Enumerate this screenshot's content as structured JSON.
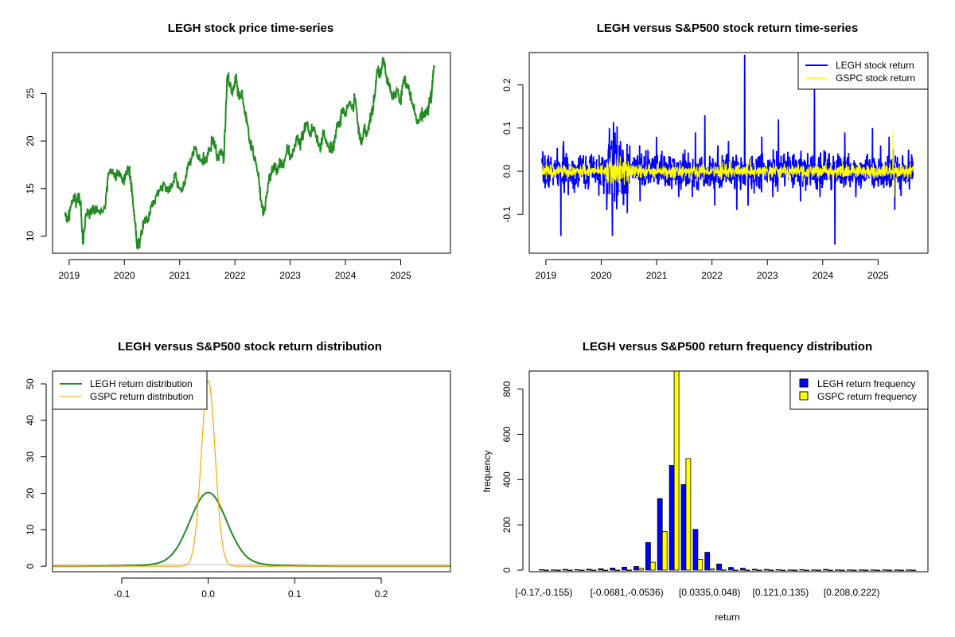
{
  "chart_data": [
    {
      "type": "line",
      "title": "LEGH stock price time-series",
      "x_ticks": [
        "2019",
        "2020",
        "2021",
        "2022",
        "2023",
        "2024",
        "2025"
      ],
      "y_ticks": [
        "10",
        "15",
        "20",
        "25"
      ],
      "xlim": [
        2018.7,
        2025.9
      ],
      "ylim": [
        8.2,
        29.3
      ],
      "series": [
        {
          "color": "#228B22",
          "points": [
            [
              2018.93,
              12.1
            ],
            [
              2018.97,
              11.4
            ],
            [
              2019.02,
              13.0
            ],
            [
              2019.08,
              14.0
            ],
            [
              2019.13,
              13.6
            ],
            [
              2019.17,
              14.3
            ],
            [
              2019.21,
              13.4
            ],
            [
              2019.25,
              9.1
            ],
            [
              2019.3,
              12.2
            ],
            [
              2019.36,
              12.6
            ],
            [
              2019.45,
              12.8
            ],
            [
              2019.55,
              12.6
            ],
            [
              2019.65,
              12.9
            ],
            [
              2019.7,
              16.0
            ],
            [
              2019.76,
              17.1
            ],
            [
              2019.82,
              16.2
            ],
            [
              2019.9,
              16.6
            ],
            [
              2019.95,
              16.0
            ],
            [
              2020.02,
              16.3
            ],
            [
              2020.08,
              17.0
            ],
            [
              2020.12,
              15.8
            ],
            [
              2020.16,
              13.2
            ],
            [
              2020.2,
              11.0
            ],
            [
              2020.23,
              8.7
            ],
            [
              2020.27,
              9.2
            ],
            [
              2020.32,
              10.5
            ],
            [
              2020.37,
              12.0
            ],
            [
              2020.42,
              11.5
            ],
            [
              2020.48,
              13.2
            ],
            [
              2020.55,
              13.8
            ],
            [
              2020.62,
              14.5
            ],
            [
              2020.7,
              15.5
            ],
            [
              2020.78,
              14.8
            ],
            [
              2020.85,
              15.3
            ],
            [
              2020.92,
              16.5
            ],
            [
              2021.0,
              15.0
            ],
            [
              2021.08,
              15.4
            ],
            [
              2021.15,
              17.5
            ],
            [
              2021.22,
              18.2
            ],
            [
              2021.28,
              19.3
            ],
            [
              2021.35,
              18.0
            ],
            [
              2021.42,
              17.8
            ],
            [
              2021.48,
              18.4
            ],
            [
              2021.55,
              19.0
            ],
            [
              2021.62,
              19.8
            ],
            [
              2021.68,
              18.3
            ],
            [
              2021.75,
              19.2
            ],
            [
              2021.8,
              18.0
            ],
            [
              2021.86,
              26.8
            ],
            [
              2021.91,
              26.0
            ],
            [
              2021.96,
              25.2
            ],
            [
              2022.02,
              26.9
            ],
            [
              2022.07,
              24.5
            ],
            [
              2022.12,
              25.0
            ],
            [
              2022.17,
              23.5
            ],
            [
              2022.22,
              22.0
            ],
            [
              2022.27,
              20.0
            ],
            [
              2022.32,
              19.0
            ],
            [
              2022.38,
              17.5
            ],
            [
              2022.44,
              15.5
            ],
            [
              2022.49,
              13.0
            ],
            [
              2022.53,
              12.6
            ],
            [
              2022.58,
              14.5
            ],
            [
              2022.63,
              16.5
            ],
            [
              2022.7,
              17.5
            ],
            [
              2022.76,
              16.8
            ],
            [
              2022.82,
              17.8
            ],
            [
              2022.88,
              17.2
            ],
            [
              2022.95,
              19.5
            ],
            [
              2023.0,
              18.2
            ],
            [
              2023.07,
              19.0
            ],
            [
              2023.12,
              20.5
            ],
            [
              2023.18,
              19.5
            ],
            [
              2023.24,
              21.0
            ],
            [
              2023.3,
              22.0
            ],
            [
              2023.35,
              20.5
            ],
            [
              2023.4,
              21.5
            ],
            [
              2023.45,
              21.0
            ],
            [
              2023.5,
              20.0
            ],
            [
              2023.55,
              19.2
            ],
            [
              2023.6,
              21.0
            ],
            [
              2023.65,
              20.0
            ],
            [
              2023.7,
              19.3
            ],
            [
              2023.75,
              18.7
            ],
            [
              2023.8,
              20.0
            ],
            [
              2023.85,
              21.5
            ],
            [
              2023.9,
              22.0
            ],
            [
              2023.95,
              23.5
            ],
            [
              2024.0,
              22.8
            ],
            [
              2024.07,
              24.0
            ],
            [
              2024.12,
              23.5
            ],
            [
              2024.18,
              24.5
            ],
            [
              2024.22,
              22.0
            ],
            [
              2024.26,
              20.5
            ],
            [
              2024.3,
              19.8
            ],
            [
              2024.34,
              21.5
            ],
            [
              2024.38,
              20.5
            ],
            [
              2024.43,
              22.0
            ],
            [
              2024.48,
              23.0
            ],
            [
              2024.53,
              25.0
            ],
            [
              2024.58,
              27.5
            ],
            [
              2024.63,
              26.8
            ],
            [
              2024.68,
              28.7
            ],
            [
              2024.73,
              27.0
            ],
            [
              2024.78,
              26.0
            ],
            [
              2024.83,
              25.0
            ],
            [
              2024.88,
              24.5
            ],
            [
              2024.93,
              25.5
            ],
            [
              2025.0,
              24.0
            ],
            [
              2025.05,
              26.5
            ],
            [
              2025.1,
              26.0
            ],
            [
              2025.15,
              25.5
            ],
            [
              2025.2,
              24.0
            ],
            [
              2025.25,
              23.0
            ],
            [
              2025.3,
              22.0
            ],
            [
              2025.35,
              22.5
            ],
            [
              2025.4,
              23.0
            ],
            [
              2025.45,
              22.8
            ],
            [
              2025.5,
              23.5
            ],
            [
              2025.55,
              24.5
            ],
            [
              2025.58,
              26.5
            ],
            [
              2025.61,
              27.9
            ]
          ]
        }
      ]
    },
    {
      "type": "line",
      "title": "LEGH versus S&P500 stock return time-series",
      "x_ticks": [
        "2019",
        "2020",
        "2021",
        "2022",
        "2023",
        "2024",
        "2025"
      ],
      "y_ticks": [
        "-0.1",
        "0.0",
        "0.1",
        "0.2"
      ],
      "xlim": [
        2018.7,
        2025.9
      ],
      "ylim": [
        -0.19,
        0.275
      ],
      "legend": {
        "position": "top-right"
      },
      "series": [
        {
          "name": "LEGH stock return",
          "color": "#0000FF",
          "spikes": [
            [
              2019.27,
              -0.15
            ],
            [
              2019.32,
              0.07
            ],
            [
              2020.1,
              -0.09
            ],
            [
              2020.15,
              0.1
            ],
            [
              2020.2,
              -0.15
            ],
            [
              2020.25,
              0.09
            ],
            [
              2020.35,
              0.07
            ],
            [
              2020.7,
              -0.07
            ],
            [
              2021.0,
              0.08
            ],
            [
              2021.4,
              -0.06
            ],
            [
              2021.7,
              0.09
            ],
            [
              2021.87,
              0.13
            ],
            [
              2022.05,
              -0.08
            ],
            [
              2022.3,
              0.07
            ],
            [
              2022.45,
              -0.09
            ],
            [
              2022.59,
              0.27
            ],
            [
              2022.65,
              -0.08
            ],
            [
              2022.9,
              0.08
            ],
            [
              2023.1,
              -0.06
            ],
            [
              2023.2,
              0.12
            ],
            [
              2023.6,
              -0.07
            ],
            [
              2023.85,
              0.19
            ],
            [
              2023.95,
              -0.06
            ],
            [
              2024.22,
              -0.17
            ],
            [
              2024.4,
              0.09
            ],
            [
              2024.6,
              -0.06
            ],
            [
              2024.9,
              0.1
            ],
            [
              2025.2,
              0.08
            ],
            [
              2025.3,
              -0.09
            ],
            [
              2025.55,
              0.05
            ]
          ],
          "noise_sd": 0.02,
          "x_range": [
            2018.93,
            2025.63
          ]
        },
        {
          "name": "GSPC stock return",
          "color": "#FFFF00",
          "spikes": [
            [
              2020.18,
              0.05
            ],
            [
              2020.22,
              -0.05
            ],
            [
              2020.26,
              0.04
            ],
            [
              2022.7,
              0.03
            ],
            [
              2025.27,
              0.09
            ],
            [
              2025.29,
              -0.06
            ]
          ],
          "noise_sd": 0.008,
          "x_range": [
            2018.93,
            2025.63
          ]
        }
      ]
    },
    {
      "type": "line",
      "title": "LEGH versus S&P500 stock return distribution",
      "x_ticks": [
        "-0.1",
        "0.0",
        "0.1",
        "0.2"
      ],
      "y_ticks": [
        "0",
        "10",
        "20",
        "30",
        "40",
        "50"
      ],
      "xlim": [
        -0.18,
        0.28
      ],
      "ylim": [
        -1.5,
        53.5
      ],
      "legend": {
        "position": "top-left"
      },
      "series": [
        {
          "name": "LEGH return distribution",
          "color": "#228B22",
          "peak": 19.3,
          "center": 0.0,
          "sd": 0.021
        },
        {
          "name": "GSPC return distribution",
          "color": "#FFA500",
          "peak": 51.0,
          "center": 0.0,
          "sd": 0.008
        }
      ]
    },
    {
      "type": "bar",
      "title": "LEGH versus S&P500 return frequency distribution",
      "xlabel": "return",
      "ylabel": "frequency",
      "x_tick_labels": [
        "[-0.17,-0.155)",
        "[-0.0681,-0.0536)",
        "[0.0335,0.048)",
        "[0.121,0.135)",
        "[0.208,0.222)"
      ],
      "x_tick_bins": [
        0,
        7,
        14,
        20,
        26
      ],
      "y_ticks": [
        "0",
        "200",
        "400",
        "600",
        "800"
      ],
      "ylim": [
        0,
        880
      ],
      "legend": {
        "position": "top-right"
      },
      "series": [
        {
          "name": "LEGH return frequency",
          "color": "#0000FF",
          "values": [
            2,
            1,
            3,
            2,
            4,
            6,
            9,
            13,
            16,
            122,
            316,
            463,
            378,
            180,
            79,
            27,
            12,
            8,
            4,
            3,
            2,
            1,
            2,
            1,
            3,
            1,
            1,
            1,
            1,
            1,
            1,
            1
          ]
        },
        {
          "name": "GSPC return frequency",
          "color": "#FFFF00",
          "values": [
            0,
            0,
            0,
            0,
            0,
            0,
            0,
            0,
            8,
            35,
            170,
            900,
            493,
            48,
            6,
            1,
            0,
            0,
            0,
            0,
            0,
            0,
            0,
            0,
            0,
            0,
            0,
            0,
            0,
            0,
            0,
            0
          ]
        }
      ]
    }
  ]
}
